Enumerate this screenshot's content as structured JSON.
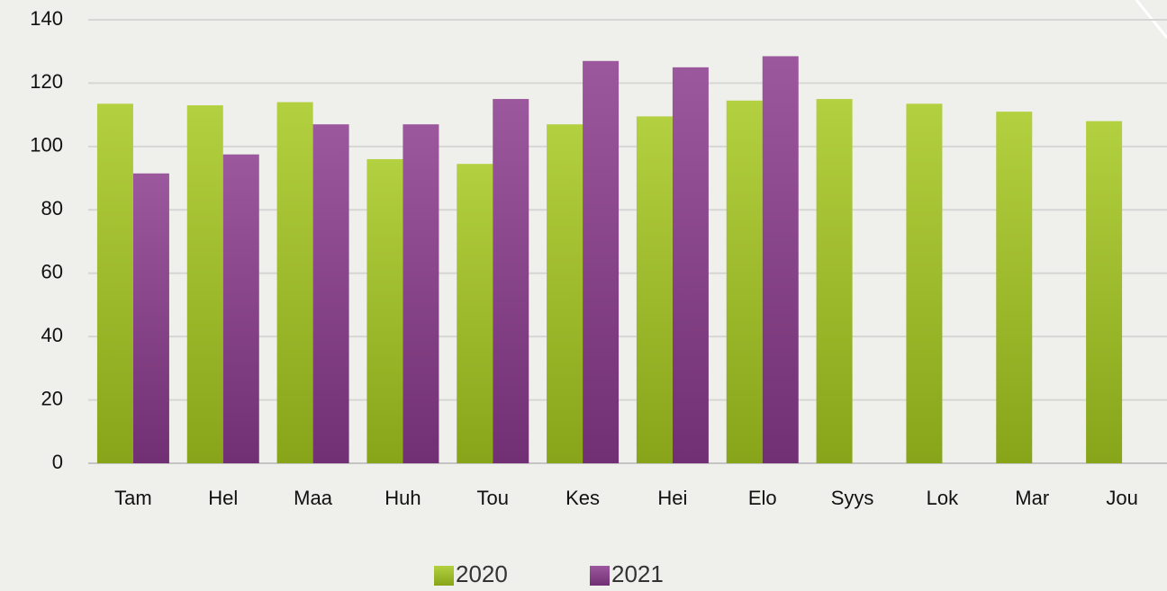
{
  "chart_data": {
    "type": "bar",
    "categories": [
      "Tam",
      "Hel",
      "Maa",
      "Huh",
      "Tou",
      "Kes",
      "Hei",
      "Elo",
      "Syys",
      "Lok",
      "Mar",
      "Jou"
    ],
    "series": [
      {
        "name": "2020",
        "color": "#a6c81e",
        "values": [
          113.5,
          113,
          114,
          96,
          94.5,
          107,
          109.5,
          114.5,
          115,
          113.5,
          111,
          108
        ]
      },
      {
        "name": "2021",
        "color": "#8a3a8c",
        "values": [
          91.5,
          97.5,
          107,
          107,
          115,
          127,
          125,
          128.5,
          null,
          null,
          null,
          null
        ]
      }
    ],
    "ylim": [
      0,
      140
    ],
    "yticks": [
      0,
      20,
      40,
      60,
      80,
      100,
      120,
      140
    ],
    "grid": true,
    "legend": "bottom"
  }
}
